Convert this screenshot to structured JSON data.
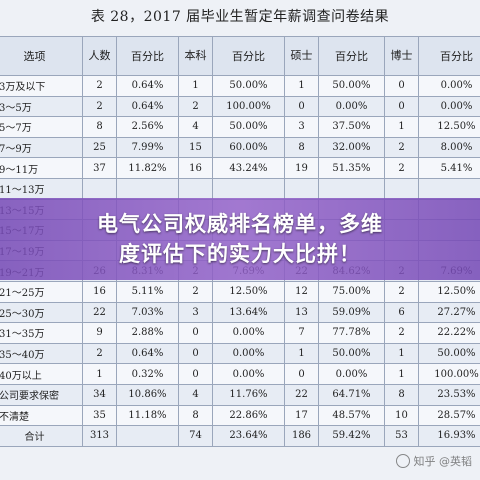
{
  "document": {
    "title": "表 28，2017 届毕业生暂定年薪调查问卷结果"
  },
  "table": {
    "headers": [
      "选项",
      "人数",
      "百分比",
      "本科",
      "百分比",
      "硕士",
      "百分比",
      "博士",
      "百分比"
    ],
    "rows": [
      [
        "3万及以下",
        "2",
        "0.64%",
        "1",
        "50.00%",
        "1",
        "50.00%",
        "0",
        "0.00%"
      ],
      [
        "3～5万",
        "2",
        "0.64%",
        "2",
        "100.00%",
        "0",
        "0.00%",
        "0",
        "0.00%"
      ],
      [
        "5～7万",
        "8",
        "2.56%",
        "4",
        "50.00%",
        "3",
        "37.50%",
        "1",
        "12.50%"
      ],
      [
        "7～9万",
        "25",
        "7.99%",
        "15",
        "60.00%",
        "8",
        "32.00%",
        "2",
        "8.00%"
      ],
      [
        "9～11万",
        "37",
        "11.82%",
        "16",
        "43.24%",
        "19",
        "51.35%",
        "2",
        "5.41%"
      ],
      [
        "11～13万",
        "",
        "",
        "",
        "",
        "",
        "",
        "",
        ""
      ],
      [
        "13～15万",
        "",
        "",
        "",
        "",
        "",
        "",
        "",
        ""
      ],
      [
        "15～17万",
        "",
        "",
        "",
        "",
        "",
        "",
        "",
        ""
      ],
      [
        "17～19万",
        "",
        "",
        "",
        "",
        "",
        "",
        "",
        ""
      ],
      [
        "19～21万",
        "26",
        "8.31%",
        "2",
        "7.69%",
        "22",
        "84.62%",
        "2",
        "7.69%"
      ],
      [
        "21～25万",
        "16",
        "5.11%",
        "2",
        "12.50%",
        "12",
        "75.00%",
        "2",
        "12.50%"
      ],
      [
        "25～30万",
        "22",
        "7.03%",
        "3",
        "13.64%",
        "13",
        "59.09%",
        "6",
        "27.27%"
      ],
      [
        "31～35万",
        "9",
        "2.88%",
        "0",
        "0.00%",
        "7",
        "77.78%",
        "2",
        "22.22%"
      ],
      [
        "35～40万",
        "2",
        "0.64%",
        "0",
        "0.00%",
        "1",
        "50.00%",
        "1",
        "50.00%"
      ],
      [
        "40万以上",
        "1",
        "0.32%",
        "0",
        "0.00%",
        "0",
        "0.00%",
        "1",
        "100.00%"
      ],
      [
        "公司要求保密",
        "34",
        "10.86%",
        "4",
        "11.76%",
        "22",
        "64.71%",
        "8",
        "23.53%"
      ],
      [
        "不清楚",
        "35",
        "11.18%",
        "8",
        "22.86%",
        "17",
        "48.57%",
        "10",
        "28.57%"
      ],
      [
        "合计",
        "313",
        "",
        "74",
        "23.64%",
        "186",
        "59.42%",
        "53",
        "16.93%"
      ]
    ]
  },
  "banner": {
    "line1": "电气公司权威排名榜单，多维",
    "line2": "度评估下的实力大比拼！"
  },
  "watermark": {
    "text": "知乎 @英韬"
  }
}
